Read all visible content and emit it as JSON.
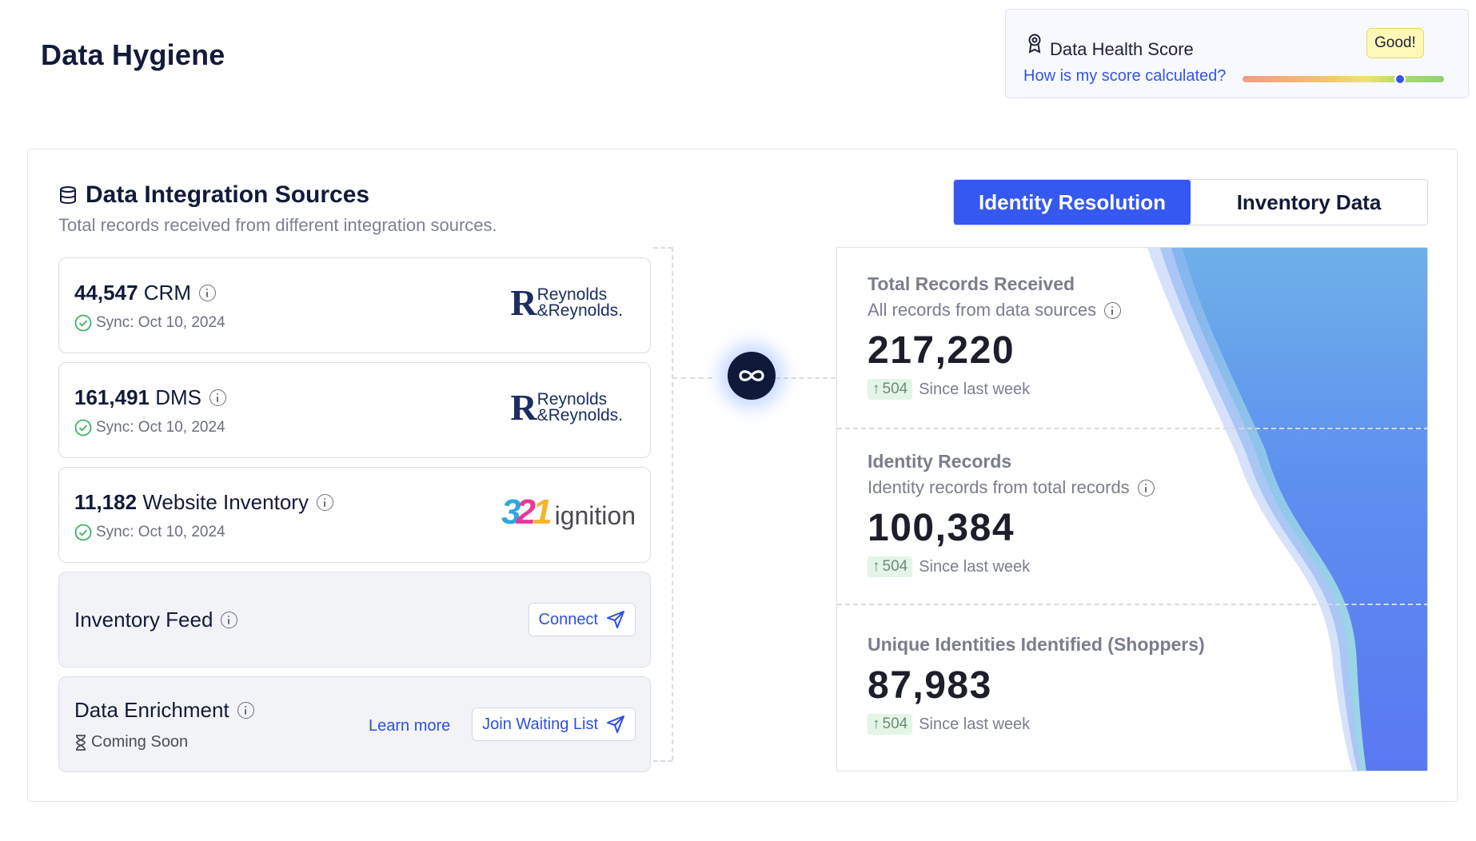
{
  "page": {
    "title": "Data Hygiene"
  },
  "health": {
    "title": "Data Health Score",
    "badge": "Good!",
    "link": "How is my score calculated?",
    "score_fraction": 0.78
  },
  "sources": {
    "title": "Data Integration Sources",
    "subtitle": "Total records received from different integration sources.",
    "items": [
      {
        "count": "44,547",
        "name": "CRM",
        "sync": "Sync: Oct 10, 2024",
        "logo": "Reynolds & Reynolds"
      },
      {
        "count": "161,491",
        "name": "DMS",
        "sync": "Sync: Oct 10, 2024",
        "logo": "Reynolds & Reynolds"
      },
      {
        "count": "11,182",
        "name": "Website Inventory",
        "sync": "Sync: Oct 10, 2024",
        "logo": "321 ignition"
      }
    ],
    "inventory_feed": {
      "name": "Inventory Feed",
      "button": "Connect"
    },
    "enrichment": {
      "name": "Data Enrichment",
      "status": "Coming Soon",
      "learn": "Learn more",
      "button": "Join Waiting List"
    }
  },
  "logos": {
    "rr_mark": "R",
    "rr_line1": "Reynolds",
    "rr_line2": "&Reynolds.",
    "ign_3": "3",
    "ign_2": "2",
    "ign_1": "1",
    "ign_word": "ignition"
  },
  "tabs": [
    {
      "label": "Identity Resolution",
      "active": true
    },
    {
      "label": "Inventory Data",
      "active": false
    }
  ],
  "metrics": [
    {
      "title": "Total Records Received",
      "subtitle": "All records from data sources",
      "value": "217,220",
      "delta": "504",
      "delta_label": "Since last week"
    },
    {
      "title": "Identity Records",
      "subtitle": "Identity records from total records",
      "value": "100,384",
      "delta": "504",
      "delta_label": "Since last week"
    },
    {
      "title": "Unique Identities Identified (Shoppers)",
      "subtitle": "",
      "value": "87,983",
      "delta": "504",
      "delta_label": "Since last week"
    }
  ],
  "colors": {
    "accent": "#3558f0",
    "good_badge": "#fff8b8",
    "delta_chip": "#e3f5e6",
    "hub": "#0f1a3a"
  },
  "icons": [
    "award-icon",
    "database-icon",
    "info-icon",
    "check-circle-icon",
    "send-icon",
    "hourglass-icon",
    "infinity-icon",
    "arrow-up-icon"
  ]
}
